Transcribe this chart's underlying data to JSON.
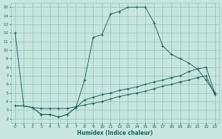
{
  "xlabel": "Humidex (Indice chaleur)",
  "bg_color": "#c8e6e0",
  "grid_color": "#8abfb8",
  "line_color": "#1a6060",
  "xlim": [
    -0.5,
    23.5
  ],
  "ylim": [
    1.5,
    15.5
  ],
  "xticks": [
    0,
    1,
    2,
    3,
    4,
    5,
    6,
    7,
    8,
    9,
    10,
    11,
    12,
    13,
    14,
    15,
    16,
    17,
    18,
    19,
    20,
    21,
    22,
    23
  ],
  "yticks": [
    2,
    3,
    4,
    5,
    6,
    7,
    8,
    9,
    10,
    11,
    12,
    13,
    14,
    15
  ],
  "line1_x": [
    0,
    1,
    2,
    3,
    4,
    5,
    6,
    7,
    8,
    9,
    10,
    11,
    12,
    13,
    14,
    15,
    16,
    17,
    18,
    19,
    20,
    21,
    22,
    23
  ],
  "line1_y": [
    12.0,
    3.5,
    3.3,
    2.5,
    2.5,
    2.2,
    2.5,
    3.3,
    6.5,
    11.5,
    11.8,
    14.2,
    14.5,
    15.0,
    15.0,
    15.0,
    13.2,
    10.5,
    9.5,
    9.0,
    8.5,
    7.8,
    6.5,
    5.0
  ],
  "line2_x": [
    0,
    1,
    2,
    3,
    4,
    5,
    6,
    7,
    8,
    9,
    10,
    11,
    12,
    13,
    14,
    15,
    16,
    17,
    18,
    19,
    20,
    21,
    22,
    23
  ],
  "line2_y": [
    3.5,
    3.5,
    3.3,
    2.5,
    2.5,
    2.2,
    2.5,
    3.3,
    4.2,
    4.5,
    4.8,
    5.0,
    5.3,
    5.5,
    5.7,
    6.0,
    6.3,
    6.5,
    6.8,
    7.0,
    7.5,
    7.8,
    8.0,
    5.0
  ],
  "line3_x": [
    0,
    1,
    2,
    3,
    4,
    5,
    6,
    7,
    8,
    9,
    10,
    11,
    12,
    13,
    14,
    15,
    16,
    17,
    18,
    19,
    20,
    21,
    22,
    23
  ],
  "line3_y": [
    3.5,
    3.5,
    3.3,
    3.2,
    3.2,
    3.2,
    3.2,
    3.4,
    3.6,
    3.8,
    4.0,
    4.3,
    4.6,
    4.8,
    5.0,
    5.2,
    5.5,
    5.8,
    6.0,
    6.3,
    6.5,
    6.8,
    7.0,
    4.8
  ]
}
